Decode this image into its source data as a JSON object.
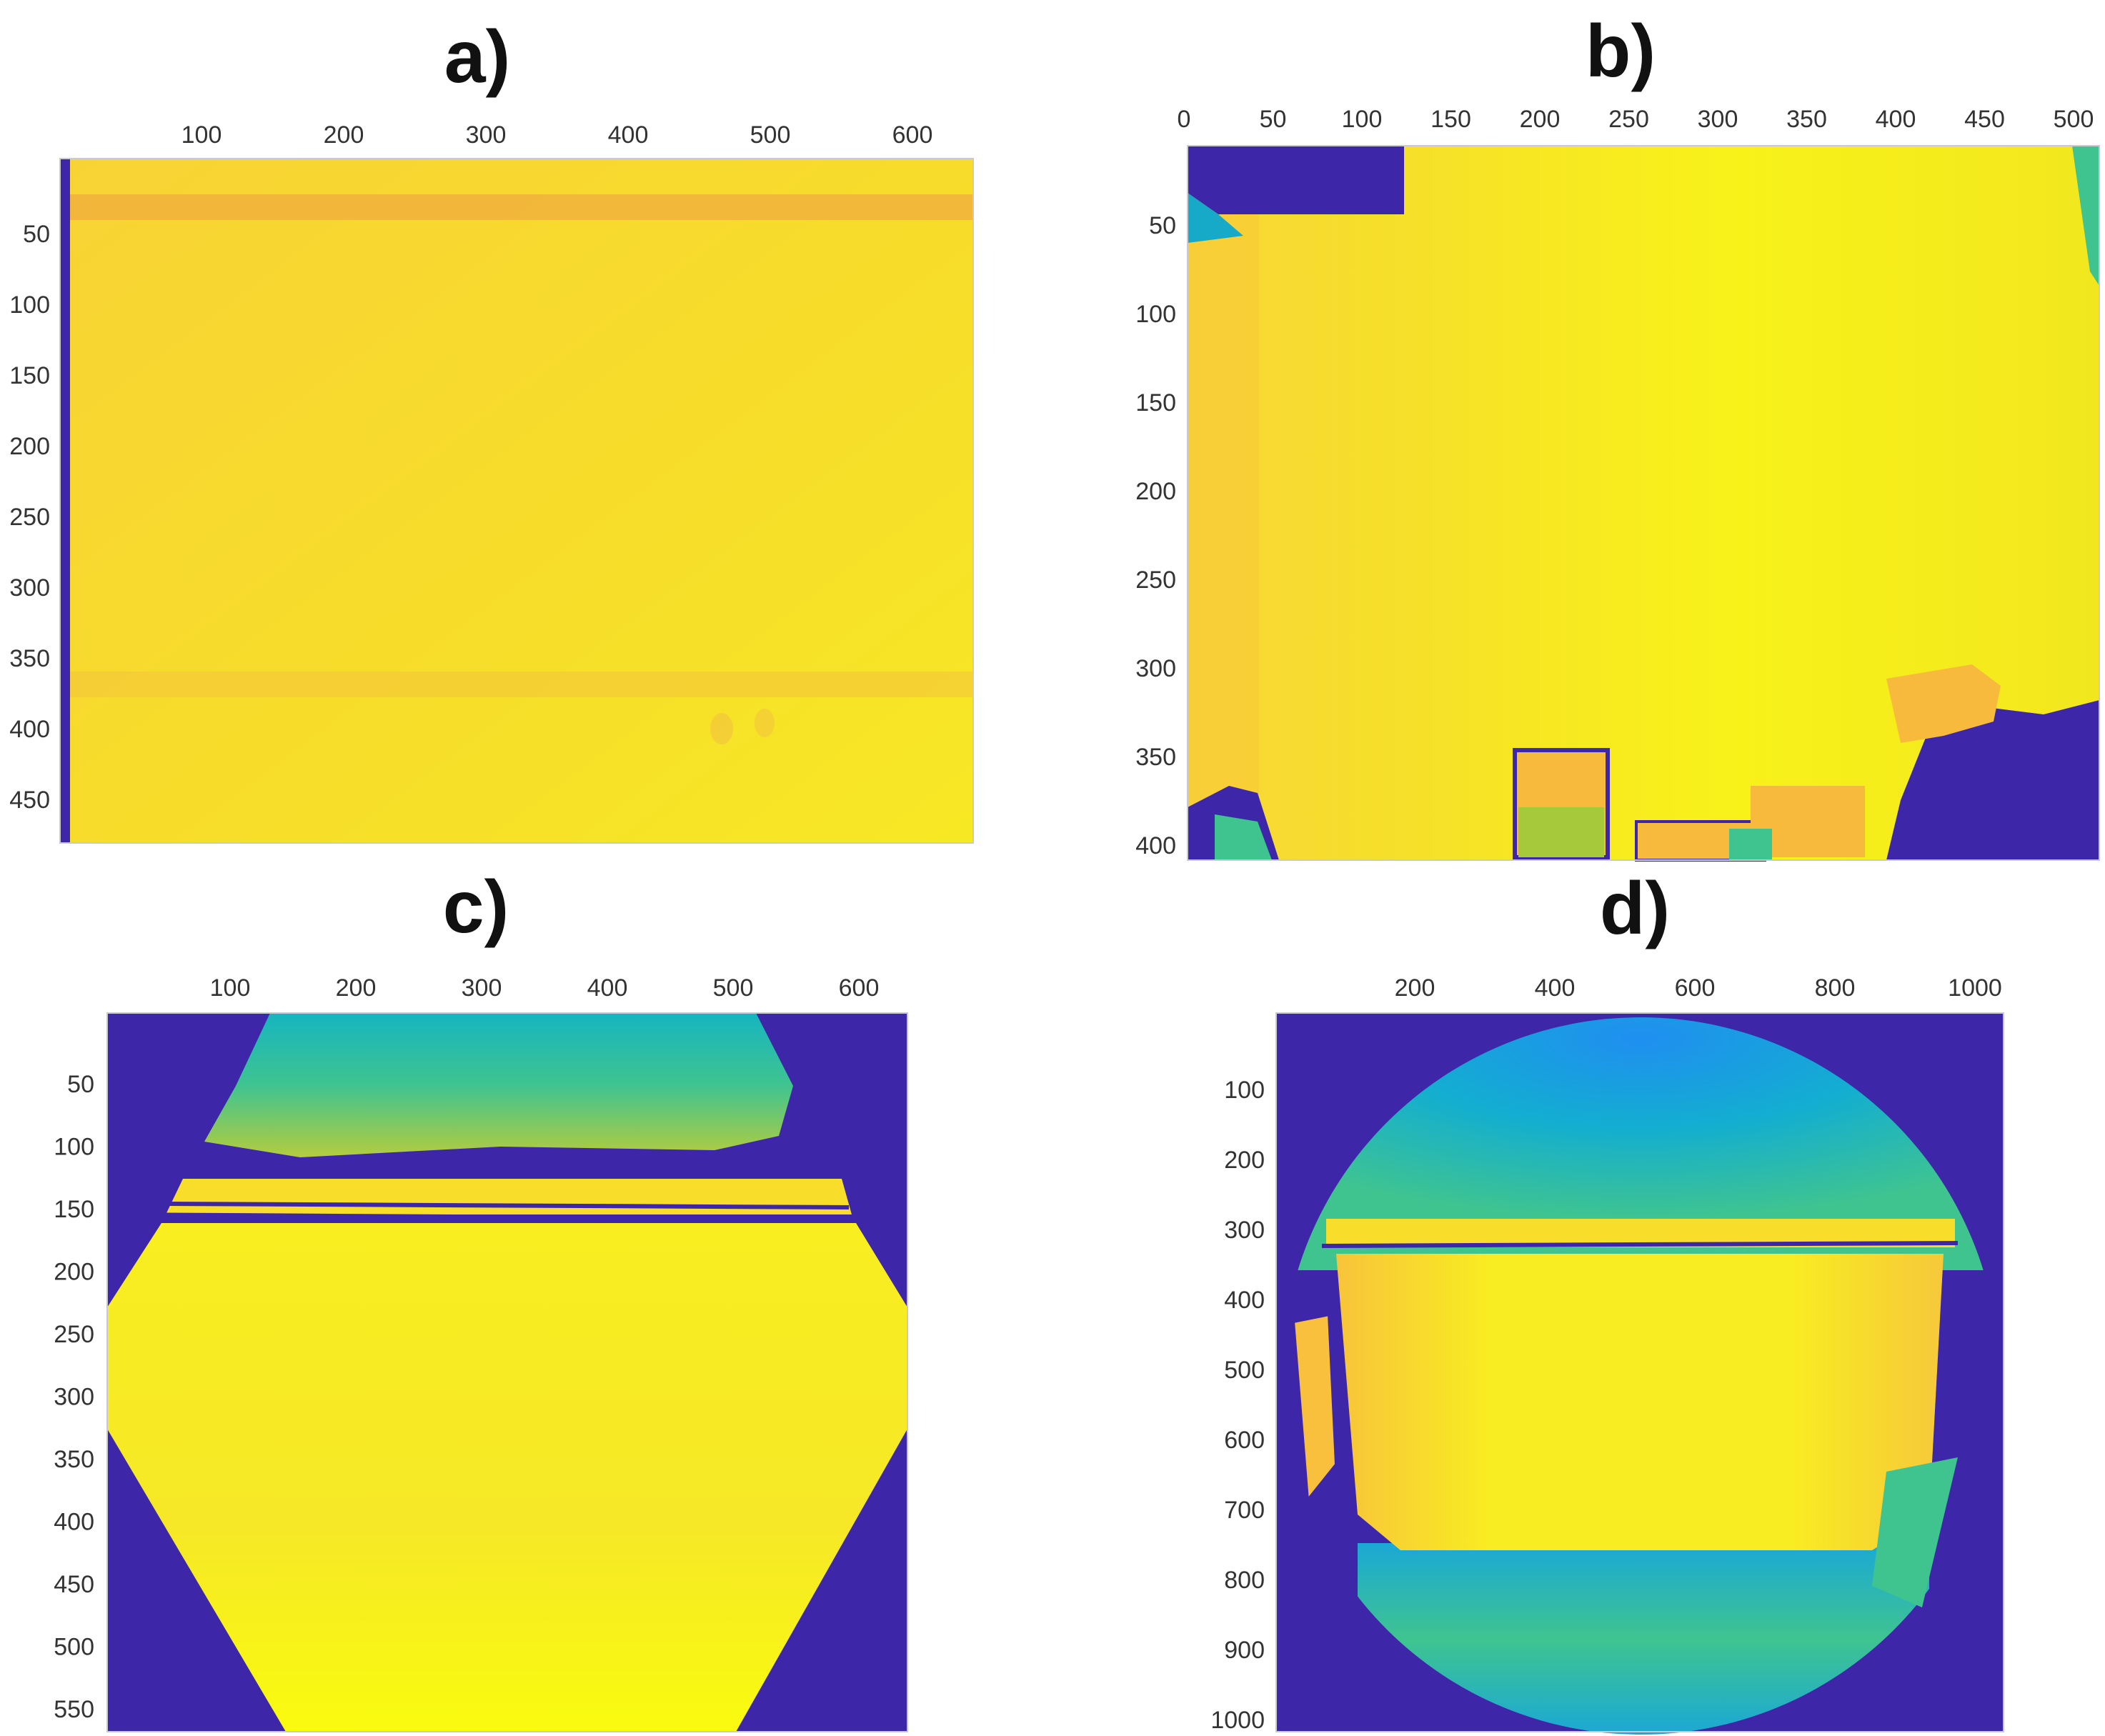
{
  "colors": {
    "colormap": [
      "#3e26a8",
      "#2a6cf0",
      "#16a9c8",
      "#3fc490",
      "#a6c93c",
      "#f8ba3d",
      "#fbd82e",
      "#f9fb0e"
    ],
    "invalid": "#3e26a8",
    "frame": "#c9c9d6",
    "tick_text": "#333333"
  },
  "panels": [
    {
      "id": "a",
      "label": "a)",
      "description": "depth map, flat wall, full coverage",
      "x_ticks": [
        "100",
        "200",
        "300",
        "400",
        "500",
        "600"
      ],
      "y_ticks": [
        "50",
        "100",
        "150",
        "200",
        "250",
        "300",
        "350",
        "400",
        "450"
      ]
    },
    {
      "id": "b",
      "label": "b)",
      "description": "depth map, room corner with objects",
      "x_ticks": [
        "0",
        "50",
        "100",
        "150",
        "200",
        "250",
        "300",
        "350",
        "400",
        "450",
        "500"
      ],
      "y_ticks": [
        "50",
        "100",
        "150",
        "200",
        "250",
        "300",
        "350",
        "400"
      ]
    },
    {
      "id": "c",
      "label": "c)",
      "description": "depth map, wide-angle lens, hexagonal valid region",
      "x_ticks": [
        "100",
        "200",
        "300",
        "400",
        "500",
        "600"
      ],
      "y_ticks": [
        "50",
        "100",
        "150",
        "200",
        "250",
        "300",
        "350",
        "400",
        "450",
        "500",
        "550"
      ]
    },
    {
      "id": "d",
      "label": "d)",
      "description": "depth map, fisheye lens, circular valid region",
      "x_ticks": [
        "200",
        "400",
        "600",
        "800",
        "1000"
      ],
      "y_ticks": [
        "100",
        "200",
        "300",
        "400",
        "500",
        "600",
        "700",
        "800",
        "900",
        "1000"
      ]
    }
  ]
}
